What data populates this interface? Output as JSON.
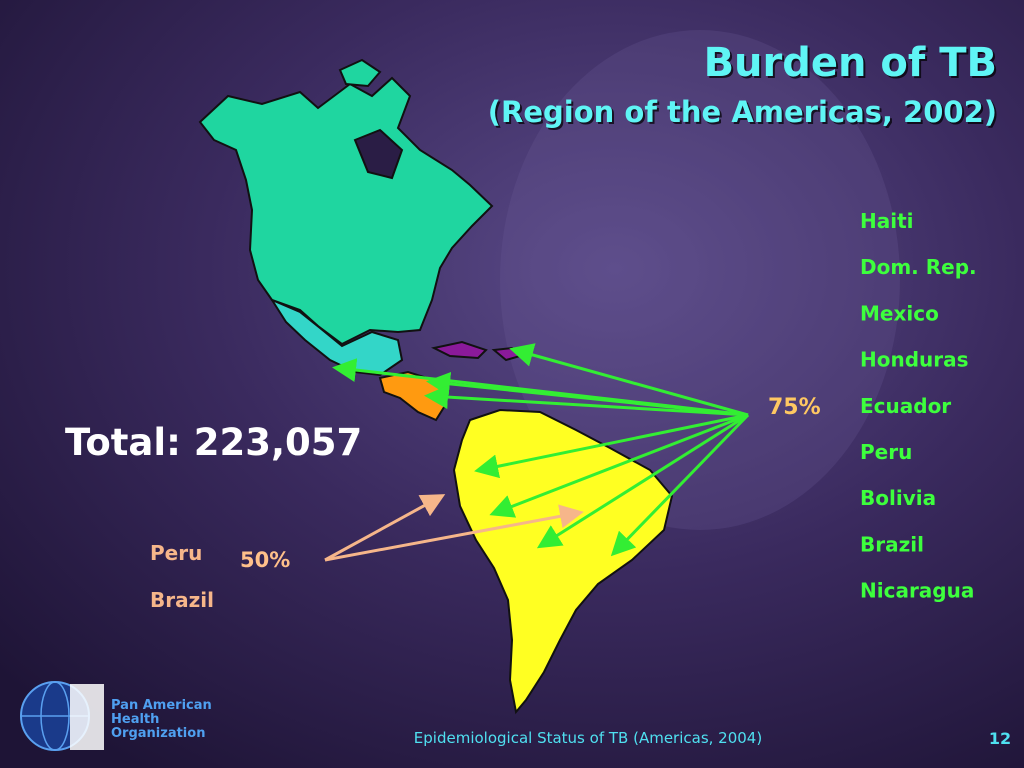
{
  "header": {
    "title": "Burden of TB",
    "subtitle": "(Region of the Americas, 2002)"
  },
  "total": "Total: 223,057",
  "group_75": {
    "label": "75%",
    "countries": [
      "Haiti",
      "Dom. Rep.",
      "Mexico",
      "Honduras",
      "Ecuador",
      "Peru",
      "Bolivia",
      "Brazil",
      "Nicaragua"
    ]
  },
  "group_50": {
    "label": "50%",
    "countries": [
      "Peru",
      "Brazil"
    ]
  },
  "footer": {
    "organization": [
      "Pan American",
      "Health",
      "Organization"
    ],
    "caption": "Epidemiological Status of TB (Americas, 2004)",
    "page": "12"
  }
}
